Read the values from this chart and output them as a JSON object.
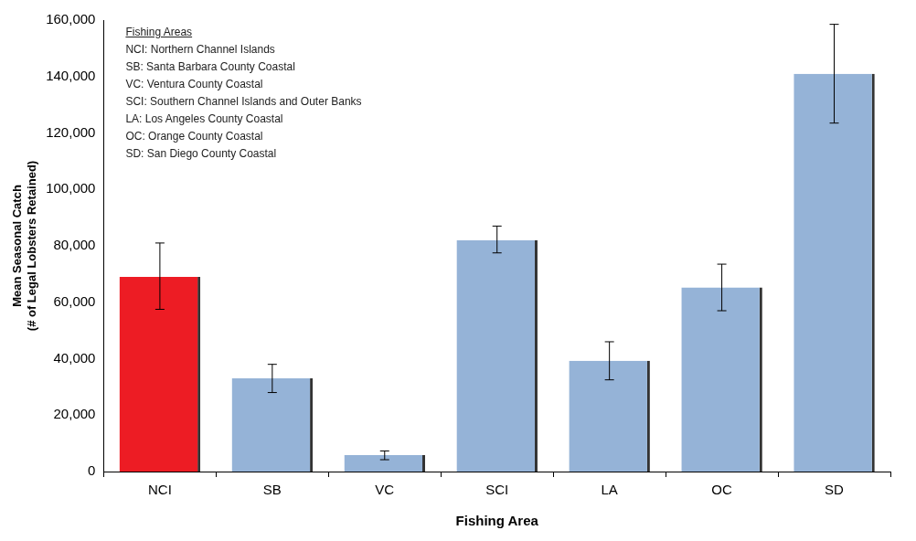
{
  "chart_data": {
    "type": "bar",
    "xlabel": "Fishing Area",
    "ylabel": "Mean Seasonal Catch\n(# of Legal Lobsters Retained)",
    "categories": [
      "NCI",
      "SB",
      "VC",
      "SCI",
      "LA",
      "OC",
      "SD"
    ],
    "values": [
      69000,
      33000,
      5800,
      82000,
      39300,
      65300,
      141000
    ],
    "colors": [
      "#ed1c24",
      "#95b3d7",
      "#95b3d7",
      "#95b3d7",
      "#95b3d7",
      "#95b3d7",
      "#95b3d7"
    ],
    "errors": [
      [
        57500,
        81000
      ],
      [
        28000,
        38000
      ],
      [
        4200,
        7300
      ],
      [
        77500,
        87000
      ],
      [
        32500,
        46000
      ],
      [
        57000,
        73500
      ],
      [
        123500,
        158500
      ]
    ],
    "ylim": [
      0,
      160000
    ],
    "yticks": [
      {
        "value": 0,
        "label": "0"
      },
      {
        "value": 20000,
        "label": "20,000"
      },
      {
        "value": 40000,
        "label": "40,000"
      },
      {
        "value": 60000,
        "label": "60,000"
      },
      {
        "value": 80000,
        "label": "80,000"
      },
      {
        "value": 100000,
        "label": "100,000"
      },
      {
        "value": 120000,
        "label": "120,000"
      },
      {
        "value": 140000,
        "label": "140,000"
      },
      {
        "value": 160000,
        "label": "160,000"
      }
    ],
    "grid": false,
    "legend": false,
    "annotations": [
      "Fishing Areas",
      "NCI: Northern Channel Islands",
      "SB: Santa Barbara County Coastal",
      "VC: Ventura County Coastal",
      "SCI: Southern Channel Islands and Outer Banks",
      "LA: Los Angeles County Coastal",
      "OC: Orange County Coastal",
      "SD: San Diego County Coastal"
    ]
  }
}
